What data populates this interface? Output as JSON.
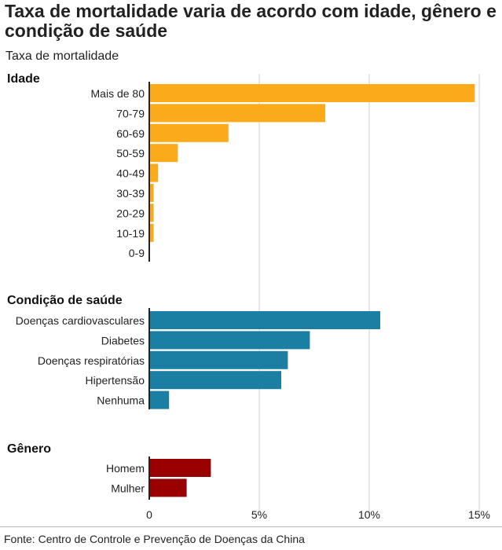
{
  "title": "Taxa de mortalidade varia de acordo com idade, gênero e condição de saúde",
  "subtitle": "Taxa de mortalidade",
  "footer": "Fonte: Centro de Controle e Prevenção de Doenças da China",
  "colors": {
    "idade": "#fbaa19",
    "condicao": "#1a7fa2",
    "genero": "#990000",
    "grid": "#cfcfcf",
    "axis": "#222222"
  },
  "chart_data": {
    "type": "bar",
    "orientation": "horizontal",
    "x_unit": "%",
    "xlim": [
      0,
      15
    ],
    "x_ticks": [
      0,
      5,
      10,
      15
    ],
    "x_tick_labels": [
      "0",
      "5%",
      "10%",
      "15%"
    ],
    "grid": true,
    "groups": [
      {
        "name": "Idade",
        "color": "#fbaa19",
        "categories": [
          "Mais de 80",
          "70-79",
          "60-69",
          "50-59",
          "40-49",
          "30-39",
          "20-29",
          "10-19",
          "0-9"
        ],
        "values": [
          14.8,
          8.0,
          3.6,
          1.3,
          0.4,
          0.2,
          0.2,
          0.2,
          0
        ]
      },
      {
        "name": "Condição de saúde",
        "color": "#1a7fa2",
        "categories": [
          "Doenças cardiovasculares",
          "Diabetes",
          "Doenças respiratórias",
          "Hipertensão",
          "Nenhuma"
        ],
        "values": [
          10.5,
          7.3,
          6.3,
          6.0,
          0.9
        ]
      },
      {
        "name": "Gênero",
        "color": "#990000",
        "categories": [
          "Homem",
          "Mulher"
        ],
        "values": [
          2.8,
          1.7
        ]
      }
    ]
  }
}
